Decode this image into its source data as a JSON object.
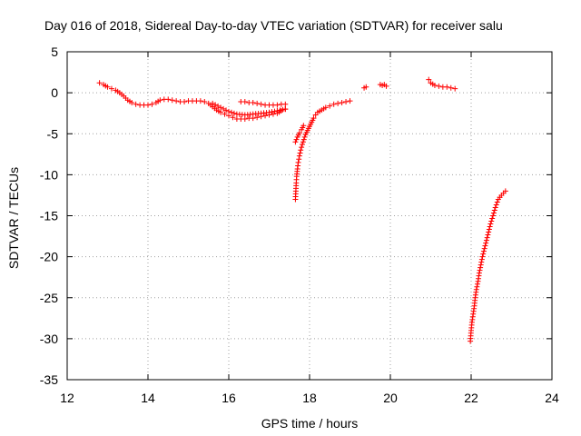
{
  "chart_data": {
    "type": "scatter",
    "title": "Day 016 of 2018, Sidereal Day-to-day VTEC variation (SDTVAR) for receiver salu",
    "xlabel": "GPS time / hours",
    "ylabel": "SDTVAR / TECUs",
    "xlim": [
      12,
      24
    ],
    "ylim": [
      -35,
      5
    ],
    "xticks": [
      12,
      14,
      16,
      18,
      20,
      22,
      24
    ],
    "yticks": [
      5,
      0,
      -5,
      -10,
      -15,
      -20,
      -25,
      -30,
      -35
    ],
    "grid": true,
    "marker": "plus",
    "series": [
      {
        "name": "SDTVAR",
        "color": "#ff0000",
        "segments": [
          [
            [
              12.8,
              1.2
            ],
            [
              12.9,
              1.0
            ],
            [
              13.0,
              0.7
            ],
            [
              13.1,
              0.5
            ],
            [
              13.2,
              0.3
            ],
            [
              13.3,
              0.0
            ],
            [
              13.4,
              -0.4
            ],
            [
              13.5,
              -0.9
            ],
            [
              13.6,
              -1.2
            ],
            [
              13.7,
              -1.4
            ],
            [
              13.8,
              -1.5
            ],
            [
              13.9,
              -1.5
            ],
            [
              14.0,
              -1.5
            ],
            [
              14.1,
              -1.4
            ],
            [
              14.2,
              -1.2
            ],
            [
              14.3,
              -0.9
            ],
            [
              14.4,
              -0.8
            ],
            [
              14.5,
              -0.8
            ],
            [
              14.6,
              -0.9
            ],
            [
              14.7,
              -1.0
            ],
            [
              14.8,
              -1.1
            ],
            [
              14.9,
              -1.1
            ],
            [
              15.0,
              -1.0
            ],
            [
              15.1,
              -1.0
            ],
            [
              15.2,
              -1.0
            ],
            [
              15.3,
              -1.0
            ],
            [
              15.4,
              -1.1
            ],
            [
              15.5,
              -1.3
            ],
            [
              15.6,
              -1.7
            ],
            [
              15.7,
              -2.1
            ],
            [
              15.8,
              -2.4
            ],
            [
              15.9,
              -2.6
            ],
            [
              16.0,
              -2.8
            ],
            [
              16.1,
              -3.0
            ],
            [
              16.2,
              -3.2
            ],
            [
              16.3,
              -3.2
            ],
            [
              16.4,
              -3.2
            ],
            [
              16.5,
              -3.1
            ],
            [
              16.6,
              -3.1
            ],
            [
              16.7,
              -3.0
            ],
            [
              16.8,
              -2.9
            ],
            [
              16.9,
              -2.8
            ],
            [
              17.0,
              -2.7
            ],
            [
              17.1,
              -2.6
            ],
            [
              17.2,
              -2.5
            ],
            [
              17.3,
              -2.2
            ],
            [
              17.4,
              -2.0
            ]
          ],
          [
            [
              15.6,
              -1.3
            ],
            [
              15.8,
              -1.8
            ],
            [
              16.0,
              -2.3
            ],
            [
              16.2,
              -2.6
            ],
            [
              16.4,
              -2.7
            ],
            [
              16.6,
              -2.6
            ],
            [
              16.8,
              -2.5
            ],
            [
              17.0,
              -2.4
            ],
            [
              17.2,
              -2.2
            ],
            [
              17.4,
              -2.0
            ]
          ],
          [
            [
              16.3,
              -1.1
            ],
            [
              16.4,
              -1.1
            ],
            [
              16.5,
              -1.2
            ],
            [
              16.6,
              -1.2
            ],
            [
              16.7,
              -1.3
            ],
            [
              16.8,
              -1.4
            ],
            [
              16.9,
              -1.5
            ],
            [
              17.0,
              -1.5
            ],
            [
              17.1,
              -1.5
            ],
            [
              17.2,
              -1.5
            ],
            [
              17.3,
              -1.4
            ],
            [
              17.4,
              -1.4
            ]
          ],
          [
            [
              17.65,
              -13.0
            ],
            [
              17.66,
              -12.0
            ],
            [
              17.67,
              -11.0
            ],
            [
              17.68,
              -10.2
            ],
            [
              17.7,
              -9.3
            ],
            [
              17.72,
              -8.5
            ],
            [
              17.75,
              -7.7
            ],
            [
              17.78,
              -7.0
            ],
            [
              17.82,
              -6.3
            ],
            [
              17.86,
              -5.7
            ],
            [
              17.9,
              -5.1
            ],
            [
              17.95,
              -4.6
            ],
            [
              18.0,
              -4.1
            ],
            [
              18.05,
              -3.6
            ],
            [
              18.1,
              -3.1
            ],
            [
              18.15,
              -2.7
            ],
            [
              18.2,
              -2.4
            ],
            [
              18.3,
              -2.1
            ],
            [
              18.4,
              -1.8
            ],
            [
              18.5,
              -1.6
            ],
            [
              18.6,
              -1.4
            ],
            [
              18.7,
              -1.3
            ],
            [
              18.8,
              -1.2
            ],
            [
              18.9,
              -1.1
            ],
            [
              19.0,
              -1.0
            ]
          ],
          [
            [
              17.65,
              -6.0
            ],
            [
              17.7,
              -5.4
            ],
            [
              17.75,
              -4.9
            ],
            [
              17.8,
              -4.5
            ],
            [
              17.85,
              -4.0
            ]
          ],
          [
            [
              19.35,
              0.6
            ],
            [
              19.4,
              0.7
            ]
          ],
          [
            [
              19.75,
              1.0
            ],
            [
              19.8,
              0.9
            ],
            [
              19.85,
              1.0
            ],
            [
              19.9,
              0.8
            ]
          ],
          [
            [
              20.95,
              1.6
            ],
            [
              21.0,
              1.2
            ],
            [
              21.1,
              0.9
            ],
            [
              21.2,
              0.8
            ],
            [
              21.3,
              0.7
            ],
            [
              21.4,
              0.7
            ],
            [
              21.5,
              0.6
            ],
            [
              21.6,
              0.5
            ]
          ],
          [
            [
              21.98,
              -30.3
            ],
            [
              22.0,
              -29.0
            ],
            [
              22.02,
              -28.0
            ],
            [
              22.05,
              -27.0
            ],
            [
              22.08,
              -26.0
            ],
            [
              22.1,
              -25.0
            ],
            [
              22.13,
              -24.0
            ],
            [
              22.17,
              -23.0
            ],
            [
              22.2,
              -22.0
            ],
            [
              22.24,
              -21.0
            ],
            [
              22.28,
              -20.0
            ],
            [
              22.33,
              -19.0
            ],
            [
              22.38,
              -18.0
            ],
            [
              22.43,
              -17.0
            ],
            [
              22.48,
              -16.0
            ],
            [
              22.54,
              -15.0
            ],
            [
              22.6,
              -14.0
            ],
            [
              22.67,
              -13.0
            ],
            [
              22.75,
              -12.5
            ],
            [
              22.85,
              -12.0
            ]
          ]
        ]
      }
    ]
  }
}
